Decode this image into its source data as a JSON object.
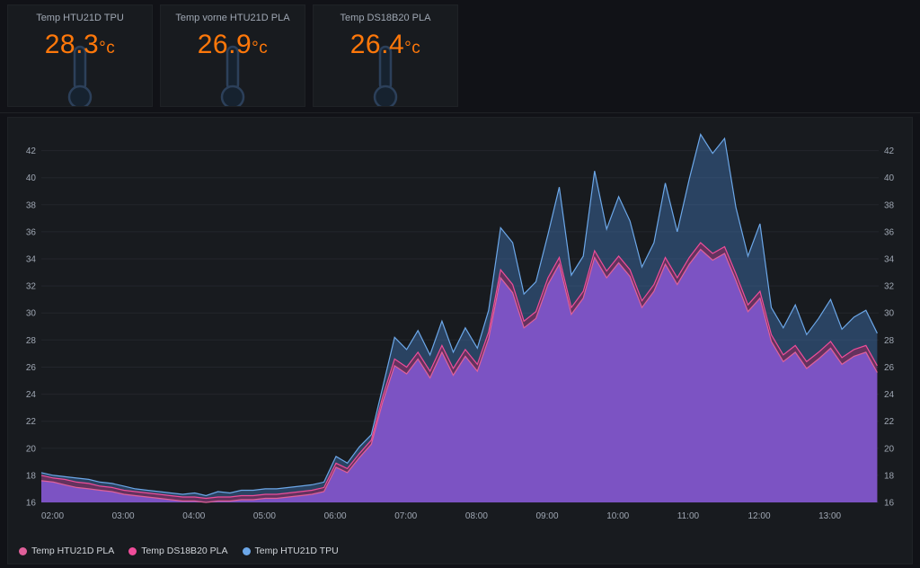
{
  "stat_panels": [
    {
      "title": "Temp HTU21D TPU",
      "value": "28.3",
      "unit": "°c"
    },
    {
      "title": "Temp vorne HTU21D PLA",
      "value": "26.9",
      "unit": "°c"
    },
    {
      "title": "Temp DS18B20 PLA",
      "value": "26.4",
      "unit": "°c"
    }
  ],
  "colors": {
    "page_bg": "#111217",
    "panel_bg": "#181b1f",
    "panel_border": "#1f2226",
    "value_text": "#ff780a",
    "title_text": "#9fa7b3",
    "axis_text": "#9fa7b3",
    "grid_line": "#23262c",
    "thermometer_fill": "#16222f",
    "thermometer_stroke": "#2c405a",
    "legend_text": "#d0d4d9"
  },
  "chart_data": {
    "type": "area",
    "title": "",
    "xlabel": "",
    "ylabel": "",
    "xlim": [
      2,
      13.85
    ],
    "ylim": [
      16,
      43.5
    ],
    "yticks": [
      16,
      18,
      20,
      22,
      24,
      26,
      28,
      30,
      32,
      34,
      36,
      38,
      40,
      42
    ],
    "xticks": [
      2,
      3,
      4,
      5,
      6,
      7,
      8,
      9,
      10,
      11,
      12,
      13
    ],
    "xtick_labels": [
      "02:00",
      "03:00",
      "04:00",
      "05:00",
      "06:00",
      "07:00",
      "08:00",
      "09:00",
      "10:00",
      "11:00",
      "12:00",
      "13:00"
    ],
    "grid": true,
    "legend_position": "bottom-left",
    "x": [
      2,
      2.17,
      2.33,
      2.5,
      2.67,
      2.83,
      3,
      3.17,
      3.33,
      3.5,
      3.67,
      3.83,
      4,
      4.17,
      4.33,
      4.5,
      4.67,
      4.83,
      5,
      5.17,
      5.33,
      5.5,
      5.67,
      5.83,
      6,
      6.17,
      6.33,
      6.5,
      6.67,
      6.83,
      7,
      7.17,
      7.33,
      7.5,
      7.67,
      7.83,
      8,
      8.17,
      8.33,
      8.5,
      8.67,
      8.83,
      9,
      9.17,
      9.33,
      9.5,
      9.67,
      9.83,
      10,
      10.17,
      10.33,
      10.5,
      10.67,
      10.83,
      11,
      11.17,
      11.33,
      11.5,
      11.67,
      11.83,
      12,
      12.17,
      12.33,
      12.5,
      12.67,
      12.83,
      13,
      13.17,
      13.33,
      13.5,
      13.67,
      13.83
    ],
    "series": [
      {
        "name": "Temp HTU21D PLA",
        "color": "#e0609a",
        "fill": "rgba(125,85,200,0.95)",
        "values": [
          17.6,
          17.5,
          17.3,
          17.1,
          17.0,
          16.9,
          16.8,
          16.6,
          16.5,
          16.4,
          16.3,
          16.2,
          16.1,
          16.1,
          16.0,
          16.1,
          16.1,
          16.2,
          16.2,
          16.3,
          16.3,
          16.4,
          16.5,
          16.6,
          16.8,
          18.6,
          18.2,
          19.3,
          20.3,
          23.4,
          26.1,
          25.5,
          26.6,
          25.2,
          27.1,
          25.4,
          26.8,
          25.7,
          28.1,
          32.6,
          31.5,
          28.9,
          29.6,
          32.1,
          33.6,
          29.9,
          31.1,
          34.1,
          32.6,
          33.7,
          32.7,
          30.4,
          31.6,
          33.6,
          32.1,
          33.6,
          34.7,
          33.9,
          34.4,
          32.4,
          30.1,
          31.1,
          27.9,
          26.4,
          27.1,
          25.9,
          26.6,
          27.4,
          26.2,
          26.8,
          27.1,
          25.6
        ]
      },
      {
        "name": "Temp DS18B20 PLA",
        "color": "#ef4d9a",
        "fill": "rgba(170,30,90,0.45)",
        "values": [
          18.0,
          17.8,
          17.7,
          17.5,
          17.4,
          17.2,
          17.1,
          16.9,
          16.8,
          16.7,
          16.6,
          16.5,
          16.4,
          16.4,
          16.3,
          16.4,
          16.4,
          16.5,
          16.5,
          16.6,
          16.6,
          16.7,
          16.8,
          16.9,
          17.1,
          18.9,
          18.5,
          19.6,
          20.6,
          23.8,
          26.6,
          26.0,
          27.1,
          25.7,
          27.6,
          25.9,
          27.3,
          26.2,
          28.6,
          33.2,
          32.1,
          29.4,
          30.1,
          32.6,
          34.1,
          30.4,
          31.6,
          34.6,
          33.1,
          34.2,
          33.2,
          30.9,
          32.1,
          34.1,
          32.6,
          34.1,
          35.2,
          34.4,
          34.9,
          32.9,
          30.6,
          31.6,
          28.4,
          26.9,
          27.6,
          26.4,
          27.1,
          27.9,
          26.7,
          27.3,
          27.6,
          26.1
        ]
      },
      {
        "name": "Temp HTU21D TPU",
        "color": "#6ca7e8",
        "fill": "rgba(70,125,190,0.42)",
        "values": [
          18.2,
          18.0,
          17.9,
          17.8,
          17.7,
          17.5,
          17.4,
          17.2,
          17.0,
          16.9,
          16.8,
          16.7,
          16.6,
          16.7,
          16.5,
          16.8,
          16.7,
          16.9,
          16.9,
          17.0,
          17.0,
          17.1,
          17.2,
          17.3,
          17.5,
          19.4,
          18.9,
          20.1,
          21.0,
          24.5,
          28.2,
          27.3,
          28.7,
          26.9,
          29.4,
          27.1,
          28.9,
          27.4,
          30.2,
          36.3,
          35.2,
          31.4,
          32.3,
          35.8,
          39.3,
          32.8,
          34.2,
          40.5,
          36.2,
          38.6,
          36.8,
          33.4,
          35.2,
          39.6,
          36.0,
          39.9,
          43.2,
          41.8,
          42.9,
          37.8,
          34.2,
          36.6,
          30.4,
          28.9,
          30.6,
          28.4,
          29.6,
          31.0,
          28.8,
          29.7,
          30.2,
          28.5
        ]
      }
    ],
    "draw_order": [
      2,
      1,
      0
    ]
  }
}
